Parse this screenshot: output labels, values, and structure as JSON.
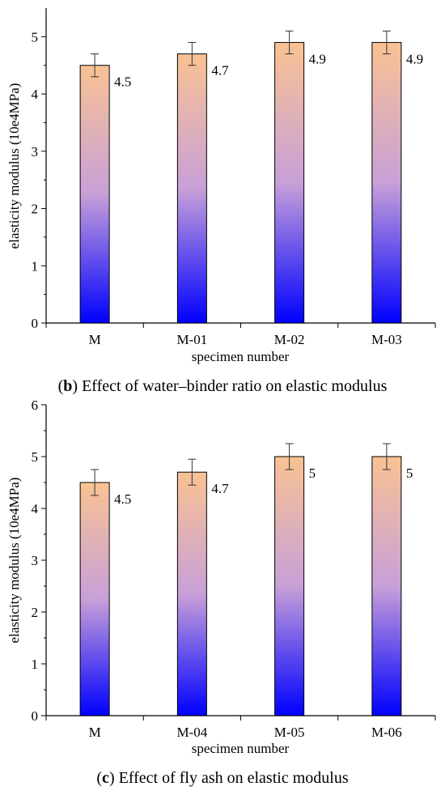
{
  "chart_data": [
    {
      "type": "bar",
      "panel": "b",
      "caption": {
        "open": "(",
        "letter": "b",
        "rest": ") Effect of water–binder ratio on elastic modulus"
      },
      "xlabel": "specimen number",
      "ylabel": "elasticity modulus (10e4MPa)",
      "categories": [
        "M",
        "M-01",
        "M-02",
        "M-03"
      ],
      "values": [
        4.5,
        4.7,
        4.9,
        4.9
      ],
      "errors": [
        0.2,
        0.2,
        0.2,
        0.2
      ],
      "data_labels": [
        "4.5",
        "4.7",
        "4.9",
        "4.9"
      ],
      "ylim": [
        0,
        5.5
      ],
      "yticks": [
        0,
        1,
        2,
        3,
        4,
        5
      ],
      "ytick_labels": [
        "0",
        "1",
        "2",
        "3",
        "4",
        "5"
      ],
      "grid": false,
      "bar_gradient": [
        "#f9c293",
        "#c8a0d8",
        "#0000ff"
      ]
    },
    {
      "type": "bar",
      "panel": "c",
      "caption": {
        "open": "(",
        "letter": "c",
        "rest": ") Effect of fly ash on elastic modulus"
      },
      "xlabel": "specimen number",
      "ylabel": "elasticity modulus (10e4MPa)",
      "categories": [
        "M",
        "M-04",
        "M-05",
        "M-06"
      ],
      "values": [
        4.5,
        4.7,
        5.0,
        5.0
      ],
      "errors": [
        0.25,
        0.25,
        0.25,
        0.25
      ],
      "data_labels": [
        "4.5",
        "4.7",
        "5",
        "5"
      ],
      "ylim": [
        0,
        6
      ],
      "yticks": [
        0,
        1,
        2,
        3,
        4,
        5,
        6
      ],
      "ytick_labels": [
        "0",
        "1",
        "2",
        "3",
        "4",
        "5",
        "6"
      ],
      "grid": false,
      "bar_gradient": [
        "#f9c293",
        "#c8a0d8",
        "#0000ff"
      ]
    }
  ]
}
